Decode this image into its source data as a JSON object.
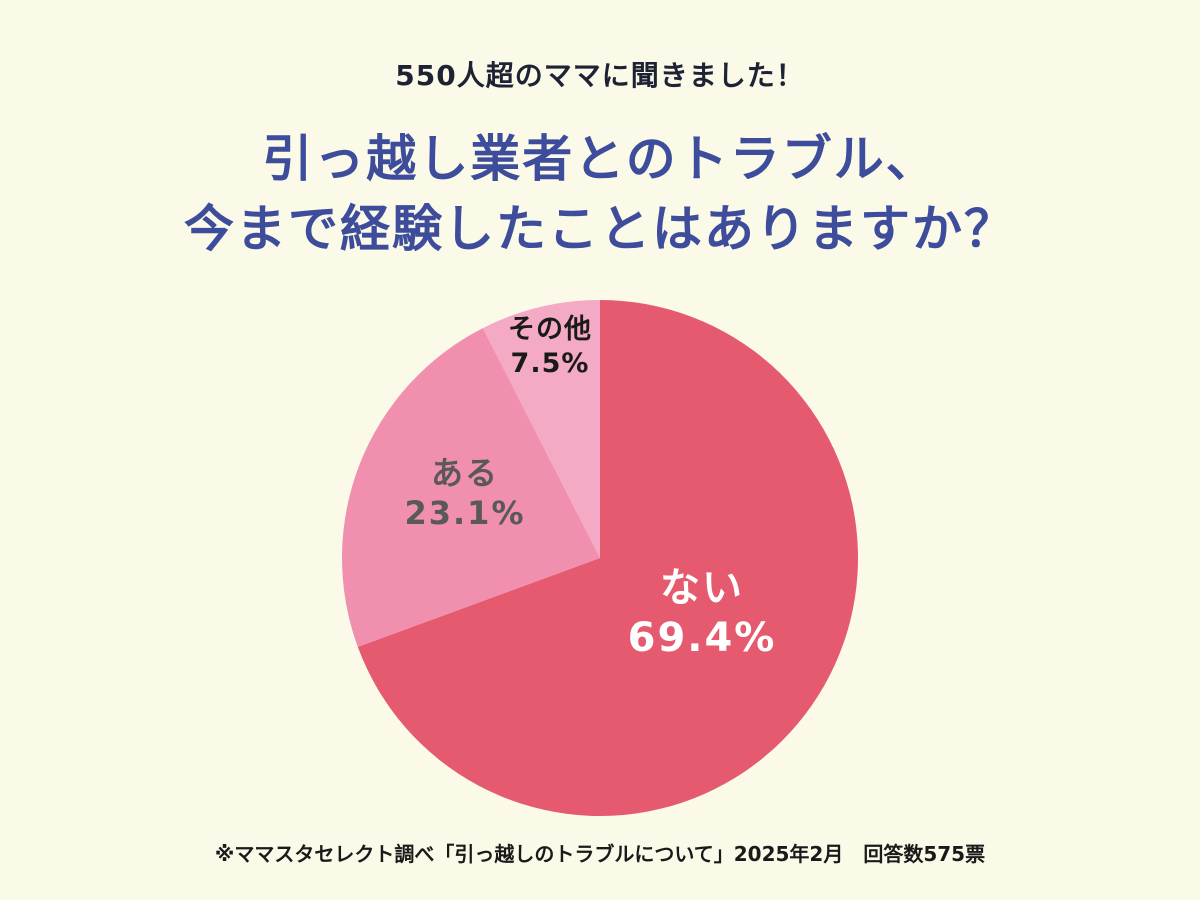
{
  "header": {
    "subtitle": "550人超のママに聞きました！",
    "title_line1": "引っ越し業者とのトラブル、",
    "title_line2": "今まで経験したことはありますか？"
  },
  "chart_data": {
    "type": "pie",
    "title": "引っ越し業者とのトラブル、今まで経験したことはありますか？",
    "start_angle_deg": 0,
    "direction": "clockwise",
    "unit": "%",
    "slices": [
      {
        "id": "nai",
        "label": "ない",
        "value": 69.4,
        "pct_label": "69.4%",
        "color": "#e55a6e",
        "label_color": "#ffffff"
      },
      {
        "id": "aru",
        "label": "ある",
        "value": 23.1,
        "pct_label": "23.1%",
        "color": "#f08fae",
        "label_color": "#595959"
      },
      {
        "id": "sonota",
        "label": "その他",
        "value": 7.5,
        "pct_label": "7.5%",
        "color": "#f4a9c5",
        "label_color": "#1a1a1a"
      }
    ]
  },
  "footer": {
    "note": "※ママスタセレクト調べ「引っ越しのトラブルについて」2025年2月　回答数575票"
  },
  "colors": {
    "background": "#fbf9e7",
    "title": "#3d4d9c",
    "subtitle": "#1e2235"
  }
}
